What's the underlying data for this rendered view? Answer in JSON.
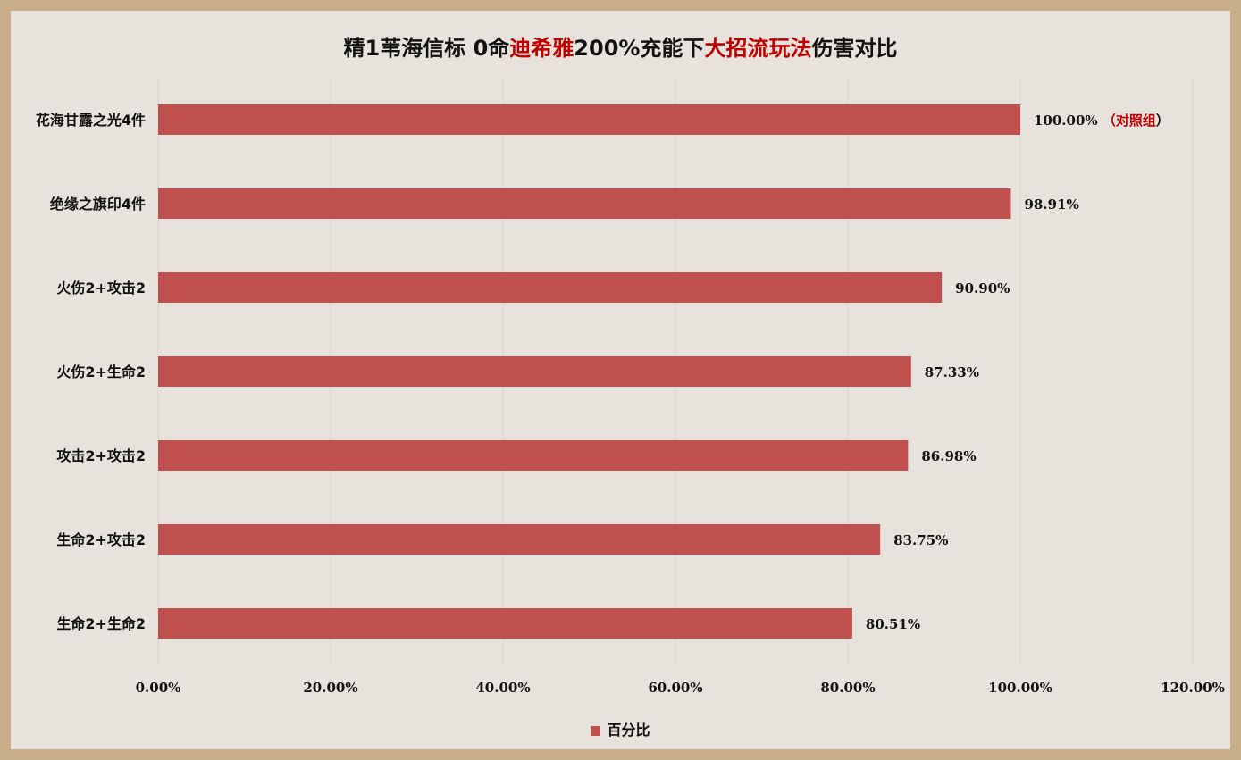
{
  "title_parts": [
    {
      "text": "精1苇海信标 0命",
      "hl": false
    },
    {
      "text": "迪希雅",
      "hl": true
    },
    {
      "text": "200%充能下",
      "hl": false
    },
    {
      "text": "大招流玩法",
      "hl": true
    },
    {
      "text": "伤害对比",
      "hl": false
    }
  ],
  "colors": {
    "bar": "#c0504d",
    "highlight": "#c00000",
    "grid": "#d9d5cd",
    "background": "#e7e3dc",
    "border": "#c8ae8a"
  },
  "chart_data": {
    "type": "bar",
    "orientation": "horizontal",
    "title": "精1苇海信标 0命迪希雅200%充能下大招流玩法伤害对比",
    "categories": [
      "花海甘露之光4件",
      "绝缘之旗印4件",
      "火伤2+攻击2",
      "火伤2+生命2",
      "攻击2+攻击2",
      "生命2+攻击2",
      "生命2+生命2"
    ],
    "series": [
      {
        "name": "百分比",
        "values": [
          100.0,
          98.91,
          90.9,
          87.33,
          86.98,
          83.75,
          80.51
        ]
      }
    ],
    "data_labels": [
      "100.00%",
      "98.91%",
      "90.90%",
      "87.33%",
      "86.98%",
      "83.75%",
      "80.51%"
    ],
    "annotations": [
      {
        "category": "花海甘露之光4件",
        "open": "（",
        "text": "对照组",
        "close": "）"
      }
    ],
    "xlim": [
      0,
      120
    ],
    "xticks": [
      0,
      20,
      40,
      60,
      80,
      100,
      120
    ],
    "xtick_labels": [
      "0.00%",
      "20.00%",
      "40.00%",
      "60.00%",
      "80.00%",
      "100.00%",
      "120.00%"
    ],
    "grid": "vertical",
    "legend_position": "bottom"
  },
  "legend": {
    "label": "百分比"
  }
}
